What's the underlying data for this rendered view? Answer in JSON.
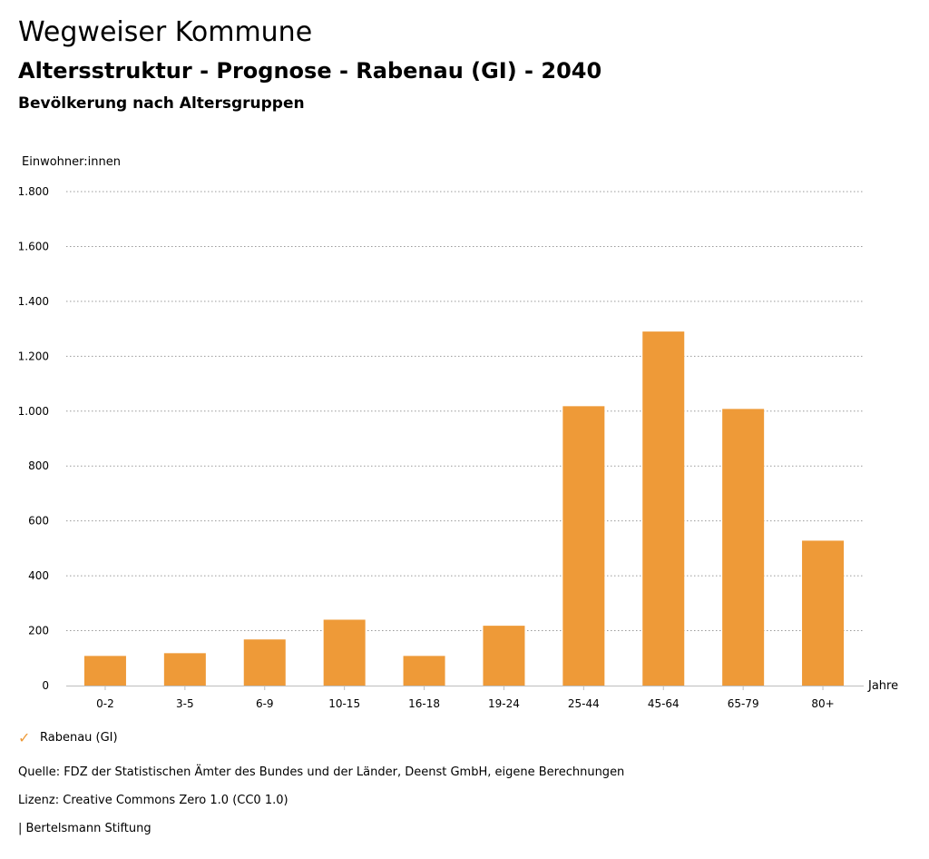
{
  "header": {
    "title": "Wegweiser Kommune",
    "subtitle": "Altersstruktur - Prognose - Rabenau (GI) - 2040",
    "section": "Bevölkerung nach Altersgruppen"
  },
  "footer": {
    "source": "Quelle: FDZ der Statistischen Ämter des Bundes und der Länder, Deenst GmbH, eigene Berechnungen",
    "license": "Lizenz: Creative Commons Zero 1.0 (CC0 1.0)",
    "publisher": "| Bertelsmann Stiftung"
  },
  "legend": {
    "check": "✓"
  },
  "chart_data": {
    "type": "bar",
    "title": "Bevölkerung nach Altersgruppen",
    "ylabel": "Einwohner:innen",
    "xlabel": "Jahre",
    "ylim": [
      0,
      1800
    ],
    "yticks": [
      0,
      200,
      400,
      600,
      800,
      1000,
      1200,
      1400,
      1600,
      1800
    ],
    "ytick_labels": [
      "0",
      "200",
      "400",
      "600",
      "800",
      "1.000",
      "1.200",
      "1.400",
      "1.600",
      "1.800"
    ],
    "grid": true,
    "categories": [
      "0-2",
      "3-5",
      "6-9",
      "10-15",
      "16-18",
      "19-24",
      "25-44",
      "45-64",
      "65-79",
      "80+"
    ],
    "series": [
      {
        "name": "Rabenau (GI)",
        "color": "#EE9A38",
        "values": [
          108,
          118,
          168,
          240,
          108,
          218,
          1018,
          1290,
          1008,
          528
        ]
      }
    ]
  }
}
